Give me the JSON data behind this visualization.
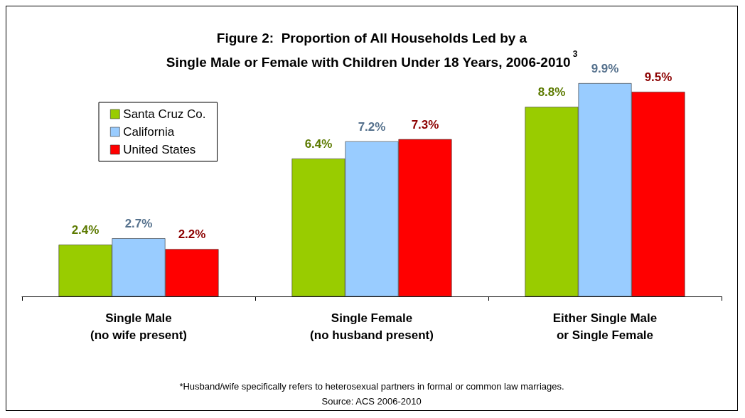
{
  "chart_data": {
    "type": "bar",
    "title": "Figure 2:  Proportion of All Households Led by a\nSingle Male or Female with Children Under 18 Years, 2006-2010$^{3}$",
    "categories": [
      "Single Male\n(no wife present)",
      "Single Female\n(no husband present)",
      "Either Single Male\nor Single Female"
    ],
    "series": [
      {
        "name": "Santa Cruz Co.",
        "color": "#99cc00",
        "values": [
          2.4,
          6.4,
          8.8
        ],
        "value_labels": [
          "2.4%",
          "6.4%",
          "8.8%"
        ]
      },
      {
        "name": "California",
        "color": "#99ccff",
        "values": [
          2.7,
          7.2,
          9.9
        ],
        "value_labels": [
          "2.7%",
          "7.2%",
          "9.9%"
        ]
      },
      {
        "name": "United States",
        "color": "#ff0000",
        "values": [
          2.2,
          7.3,
          9.5
        ],
        "value_labels": [
          "2.2%",
          "7.3%",
          "9.5%"
        ]
      }
    ],
    "legend": "top left",
    "annotations": [
      "*Husband/wife specifically refers to heterosexual partners in formal or common law marriages.",
      "Source: ACS 2006-2010"
    ]
  }
}
